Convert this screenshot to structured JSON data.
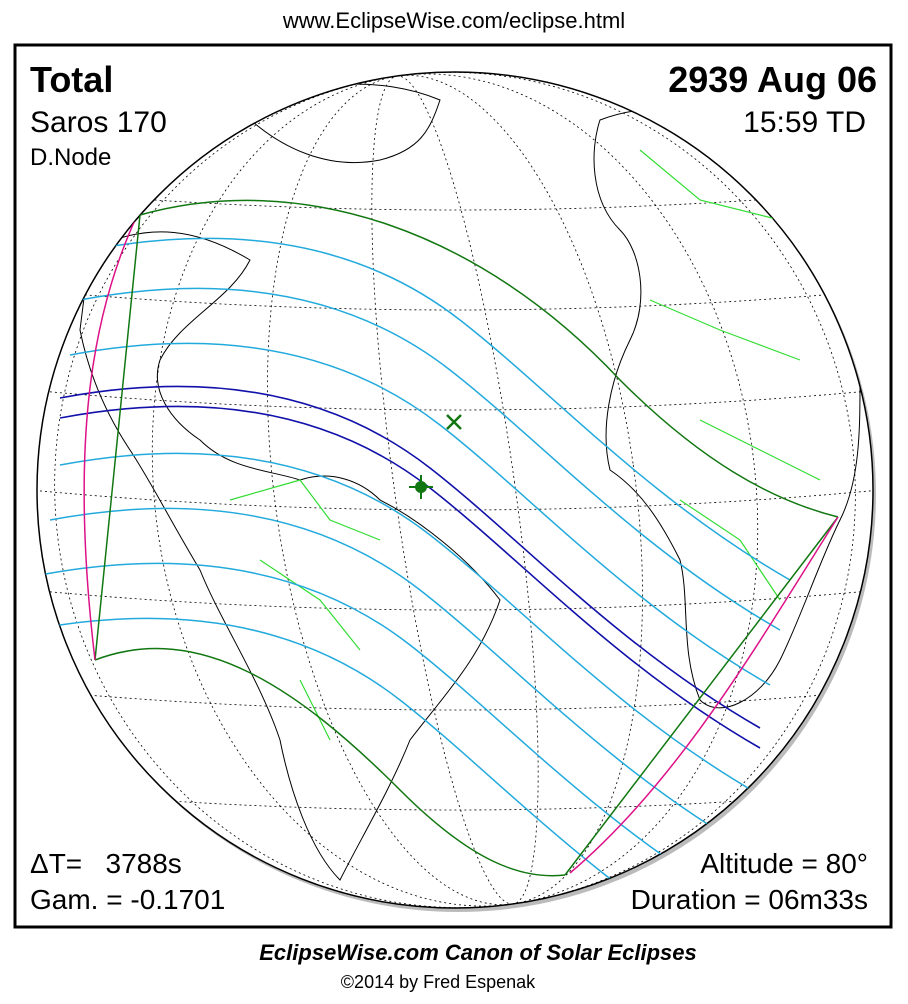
{
  "header": {
    "url": "www.EclipseWise.com/eclipse.html"
  },
  "top_left": {
    "type": "Total",
    "saros": "Saros 170",
    "node": "D.Node"
  },
  "top_right": {
    "date": "2939 Aug 06",
    "time": "15:59 TD"
  },
  "bottom_left": {
    "delta_t": "ΔT=   3788s",
    "gamma": "Gam. = -0.1701"
  },
  "bottom_right": {
    "altitude": "Altitude = 80°",
    "duration": "Duration = 06m33s"
  },
  "footer": {
    "title": "EclipseWise.com Canon of Solar Eclipses",
    "credit": "©2014 by Fred Espenak"
  }
}
